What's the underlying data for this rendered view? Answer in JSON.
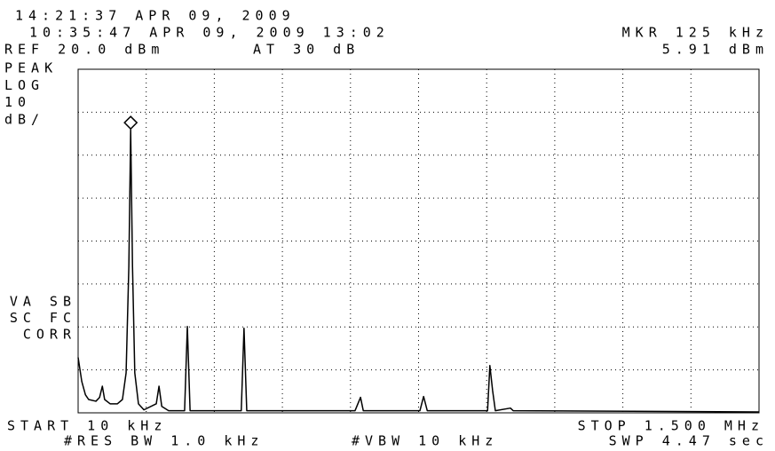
{
  "chart_data": {
    "type": "line",
    "header": {
      "timestamp": "14:21:37 APR 09, 2009",
      "saved": "10:35:47 APR 09, 2009 13:02",
      "ref": "REF 20.0 dBm",
      "atten": "AT 30 dB",
      "marker_freq": "MKR 125 kHz",
      "marker_level": "5.91 dBm"
    },
    "side_labels": [
      "PEAK",
      "LOG",
      "10",
      "dB/"
    ],
    "status_labels": [
      "VA SB",
      "SC FC",
      "CORR"
    ],
    "footer": {
      "start": "START 10 kHz",
      "stop": "STOP 1.500 MHz",
      "rbw": "#RES BW 1.0 kHz",
      "vbw": "#VBW 10 kHz",
      "sweep": "SWP 4.47 sec"
    },
    "xlim": [
      10,
      1500
    ],
    "ylim": [
      -60,
      20
    ],
    "xticks": [
      10,
      159,
      308,
      457,
      606,
      755,
      904,
      1053,
      1202,
      1351,
      1500
    ],
    "yticks": [
      -60,
      -50,
      -40,
      -30,
      -20,
      -10,
      0,
      10,
      20
    ],
    "grid": true,
    "color": "#000000",
    "x": [
      10,
      18,
      26,
      33,
      49,
      57,
      63,
      68,
      80,
      96,
      107,
      115,
      121,
      125,
      129,
      134,
      142,
      154,
      181,
      187,
      193,
      208,
      243,
      249,
      255,
      367,
      373,
      379,
      616,
      628,
      634,
      758,
      766,
      774,
      906,
      911,
      917,
      923,
      956,
      962,
      1500
    ],
    "values": [
      -47.1,
      -52.7,
      -55.8,
      -56.9,
      -57.3,
      -56.4,
      -53.8,
      -56.9,
      -57.9,
      -57.9,
      -56.9,
      -50.7,
      -25.9,
      5.91,
      -25.9,
      -50.7,
      -57.9,
      -59.3,
      -57.9,
      -53.8,
      -58.5,
      -59.5,
      -59.5,
      -39.9,
      -59.5,
      -59.5,
      -40.3,
      -59.5,
      -59.5,
      -56.4,
      -59.5,
      -59.5,
      -56.2,
      -59.5,
      -59.5,
      -49.0,
      -54.8,
      -59.5,
      -58.9,
      -59.5,
      -59.8
    ],
    "marker": {
      "x": 125,
      "y": 5.91
    }
  }
}
